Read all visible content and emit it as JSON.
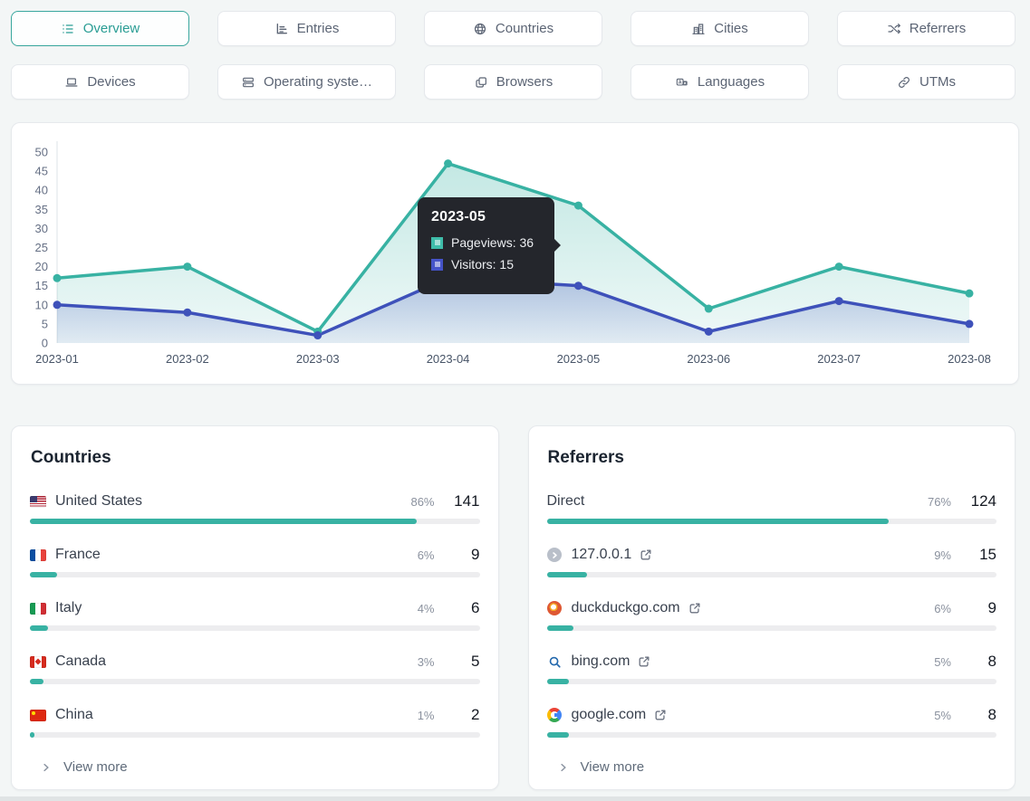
{
  "nav": {
    "buttons": [
      {
        "label": "Overview",
        "active": true
      },
      {
        "label": "Entries",
        "active": false
      },
      {
        "label": "Countries",
        "active": false
      },
      {
        "label": "Cities",
        "active": false
      },
      {
        "label": "Referrers",
        "active": false
      },
      {
        "label": "Devices",
        "active": false
      },
      {
        "label": "Operating syste…",
        "active": false
      },
      {
        "label": "Browsers",
        "active": false
      },
      {
        "label": "Languages",
        "active": false
      },
      {
        "label": "UTMs",
        "active": false
      }
    ]
  },
  "chart_data": {
    "type": "line",
    "categories": [
      "2023-01",
      "2023-02",
      "2023-03",
      "2023-04",
      "2023-05",
      "2023-06",
      "2023-07",
      "2023-08"
    ],
    "series": [
      {
        "name": "Pageviews",
        "color": "#38b2a3",
        "values": [
          17,
          20,
          3,
          47,
          36,
          9,
          20,
          13
        ]
      },
      {
        "name": "Visitors",
        "color": "#3e51ba",
        "values": [
          10,
          8,
          2,
          17,
          15,
          3,
          11,
          5
        ]
      }
    ],
    "ylim": [
      0,
      50
    ],
    "yticks": [
      0,
      5,
      10,
      15,
      20,
      25,
      30,
      35,
      40,
      45,
      50
    ],
    "grid": false,
    "area_fill": true,
    "tooltip": {
      "title": "2023-05",
      "rows": [
        {
          "text": "Pageviews: 36",
          "color": "#3fbdaa"
        },
        {
          "text": "Visitors: 15",
          "color": "#4553c8"
        }
      ]
    }
  },
  "countries": {
    "title": "Countries",
    "rows": [
      {
        "flag": "us-flag-icon",
        "label": "United States",
        "percent": "86%",
        "value": "141",
        "bar": 86
      },
      {
        "flag": "fr-flag-icon",
        "label": "France",
        "percent": "6%",
        "value": "9",
        "bar": 6
      },
      {
        "flag": "it-flag-icon",
        "label": "Italy",
        "percent": "4%",
        "value": "6",
        "bar": 4
      },
      {
        "flag": "ca-flag-icon",
        "label": "Canada",
        "percent": "3%",
        "value": "5",
        "bar": 3
      },
      {
        "flag": "cn-flag-icon",
        "label": "China",
        "percent": "1%",
        "value": "2",
        "bar": 1
      }
    ],
    "view_more": "View more"
  },
  "referrers": {
    "title": "Referrers",
    "rows": [
      {
        "icon": "none",
        "label": "Direct",
        "percent": "76%",
        "value": "124",
        "bar": 76,
        "external_link": false
      },
      {
        "icon": "localhost-icon",
        "label": "127.0.0.1",
        "percent": "9%",
        "value": "15",
        "bar": 9,
        "external_link": true
      },
      {
        "icon": "duckduckgo-icon",
        "label": "duckduckgo.com",
        "percent": "6%",
        "value": "9",
        "bar": 6,
        "external_link": true
      },
      {
        "icon": "bing-icon",
        "label": "bing.com",
        "percent": "5%",
        "value": "8",
        "bar": 5,
        "external_link": true
      },
      {
        "icon": "google-icon",
        "label": "google.com",
        "percent": "5%",
        "value": "8",
        "bar": 5,
        "external_link": true
      }
    ],
    "view_more": "View more"
  },
  "colors": {
    "accent": "#38b2a3",
    "accent_text": "#2a9d94",
    "indigo": "#3e51ba",
    "tooltip_bg": "#24262c",
    "bar_track": "#ededef",
    "page_bg": "#f3f6f6"
  }
}
